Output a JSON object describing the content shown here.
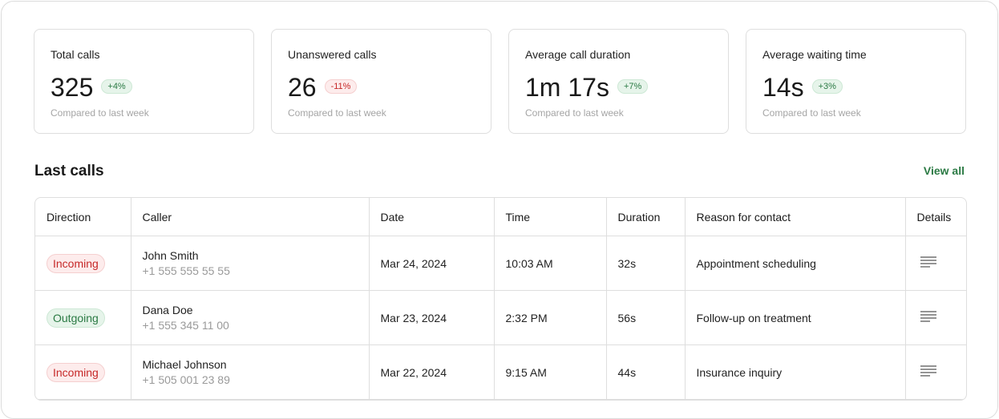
{
  "cards": [
    {
      "title": "Total calls",
      "value": "325",
      "change": "+4%",
      "note": "Compared to last week"
    },
    {
      "title": "Unanswered calls",
      "value": "26",
      "change": "-11%",
      "note": "Compared to last week"
    },
    {
      "title": "Average call duration",
      "value": "1m 17s",
      "change": "+7%",
      "note": "Compared to last week"
    },
    {
      "title": "Average waiting time",
      "value": "14s",
      "change": "+3%",
      "note": "Compared to last week"
    }
  ],
  "section": {
    "title": "Last calls",
    "link": "View all"
  },
  "table": {
    "columns": [
      "Direction",
      "Caller",
      "Date",
      "Time",
      "Duration",
      "Reason for contact",
      "Details"
    ],
    "rows": [
      {
        "direction": "Incoming",
        "name": "John Smith",
        "phone": "+1 555 555 55 55",
        "date": "Mar 24, 2024",
        "time": "10:03 AM",
        "duration": "32s",
        "reason": "Appointment scheduling"
      },
      {
        "direction": "Outgoing",
        "name": "Dana Doe",
        "phone": "+1 555 345 11 00",
        "date": "Mar 23, 2024",
        "time": "2:32 PM",
        "duration": "56s",
        "reason": "Follow-up on treatment"
      },
      {
        "direction": "Incoming",
        "name": "Michael Johnson",
        "phone": "+1 505 001 23 89",
        "date": "Mar 22, 2024",
        "time": "9:15 AM",
        "duration": "44s",
        "reason": "Insurance inquiry"
      }
    ]
  }
}
